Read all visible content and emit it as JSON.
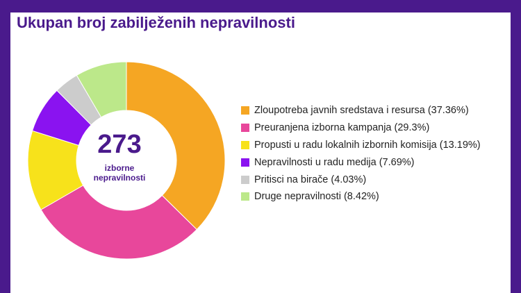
{
  "title": "Ukupan broj zabilježenih nepravilnosti",
  "center": {
    "count": "273",
    "label_line1": "izborne",
    "label_line2": "nepravilnosti"
  },
  "chart_data": {
    "type": "pie",
    "title": "Ukupan broj zabilježenih nepravilnosti",
    "total": 273,
    "legend_position": "right",
    "slices": [
      {
        "label": "Zloupotreba javnih sredstava i resursa (37.36%)",
        "value": 37.36,
        "color": "#f5a623"
      },
      {
        "label": "Preuranjena izborna kampanja (29.3%)",
        "value": 29.3,
        "color": "#e8479b"
      },
      {
        "label": "Propusti u radu lokalnih izbornih komisija (13.19%)",
        "value": 13.19,
        "color": "#f7e21b"
      },
      {
        "label": "Nepravilnosti u radu medija (7.69%)",
        "value": 7.69,
        "color": "#8a13f0"
      },
      {
        "label": "Pritisci na birače (4.03%)",
        "value": 4.03,
        "color": "#cccccc"
      },
      {
        "label": "Druge nepravilnosti (8.42%)",
        "value": 8.42,
        "color": "#bce88a"
      }
    ]
  }
}
